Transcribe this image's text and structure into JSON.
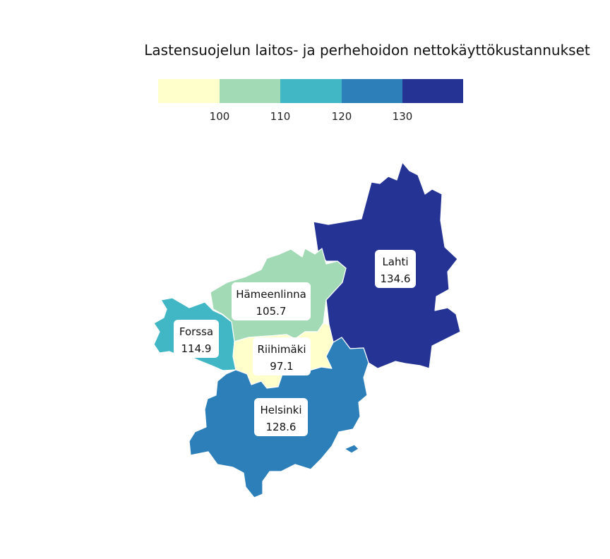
{
  "title": "Lastensuojelun laitos- ja perhehoidon nettokäyttökustannukset",
  "legend": {
    "ticks": [
      "100",
      "110",
      "120",
      "130"
    ],
    "bins": [
      {
        "min": null,
        "max": 100,
        "color": "#ffffcc"
      },
      {
        "min": 100,
        "max": 110,
        "color": "#a1dab4"
      },
      {
        "min": 110,
        "max": 120,
        "color": "#41b6c4"
      },
      {
        "min": 120,
        "max": 130,
        "color": "#2c7fb8"
      },
      {
        "min": 130,
        "max": null,
        "color": "#253494"
      }
    ]
  },
  "regions": [
    {
      "id": "lahti",
      "name": "Lahti",
      "value_label": "134.6",
      "value": 134.6,
      "color": "#253494"
    },
    {
      "id": "hameenlinna",
      "name": "Hämeenlinna",
      "value_label": "105.7",
      "value": 105.7,
      "color": "#a1dab4"
    },
    {
      "id": "forssa",
      "name": "Forssa",
      "value_label": "114.9",
      "value": 114.9,
      "color": "#41b6c4"
    },
    {
      "id": "riihimaki",
      "name": "Riihimäki",
      "value_label": "97.1",
      "value": 97.1,
      "color": "#ffffcc"
    },
    {
      "id": "helsinki",
      "name": "Helsinki",
      "value_label": "128.6",
      "value": 128.6,
      "color": "#2c7fb8"
    }
  ]
}
